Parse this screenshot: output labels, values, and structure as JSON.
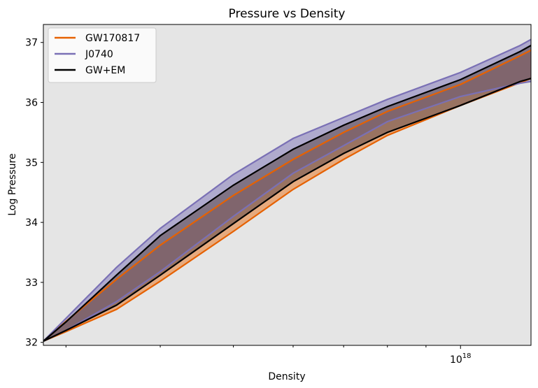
{
  "chart_data": {
    "type": "area",
    "title": "Pressure vs Density",
    "xlabel": "Density",
    "ylabel": "Log Pressure",
    "xscale": "log",
    "xlim": [
      2.8e+17,
      1.24e+18
    ],
    "ylim": [
      31.95,
      37.3
    ],
    "x_major_ticks": [
      1e+18
    ],
    "x_major_tick_labels": [
      "10^18"
    ],
    "x_minor_ticks": [
      3e+17,
      4e+17,
      5e+17,
      6e+17,
      7e+17,
      8e+17,
      9e+17
    ],
    "y_ticks": [
      32,
      33,
      34,
      35,
      36,
      37
    ],
    "y_tick_labels": [
      "32",
      "33",
      "34",
      "35",
      "36",
      "37"
    ],
    "background": "#e5e5e5",
    "legend": {
      "location": "top-left"
    },
    "series": [
      {
        "name": "GW170817",
        "color": "#e66101",
        "fill": "#e66101",
        "x": [
          2.8e+17,
          3e+17,
          3.5e+17,
          4e+17,
          5e+17,
          6e+17,
          7e+17,
          8e+17,
          1e+18,
          1.2e+18,
          1.24e+18
        ],
        "upper": [
          32.02,
          32.35,
          33.05,
          33.62,
          34.45,
          35.05,
          35.5,
          35.85,
          36.3,
          36.78,
          36.87
        ],
        "lower": [
          32.02,
          32.18,
          32.55,
          33.02,
          33.85,
          34.55,
          35.05,
          35.45,
          35.95,
          36.33,
          36.4
        ]
      },
      {
        "name": "J0740",
        "color": "#7a70b5",
        "fill": "#7a70b5",
        "x": [
          2.8e+17,
          3e+17,
          3.5e+17,
          4e+17,
          5e+17,
          6e+17,
          7e+17,
          8e+17,
          1e+18,
          1.2e+18,
          1.24e+18
        ],
        "upper": [
          32.02,
          32.4,
          33.25,
          33.9,
          34.8,
          35.4,
          35.75,
          36.05,
          36.5,
          36.95,
          37.05
        ],
        "lower": [
          32.02,
          32.2,
          32.68,
          33.18,
          34.1,
          34.82,
          35.28,
          35.68,
          36.1,
          36.32,
          36.35
        ]
      },
      {
        "name": "GW+EM",
        "color": "#000000",
        "fill": "#5a4548",
        "x": [
          2.8e+17,
          3e+17,
          3.5e+17,
          4e+17,
          5e+17,
          6e+17,
          7e+17,
          8e+17,
          1e+18,
          1.2e+18,
          1.24e+18
        ],
        "upper": [
          32.02,
          32.34,
          33.12,
          33.78,
          34.62,
          35.22,
          35.62,
          35.93,
          36.38,
          36.85,
          36.95
        ],
        "lower": [
          32.02,
          32.2,
          32.62,
          33.12,
          33.98,
          34.68,
          35.15,
          35.5,
          35.95,
          36.35,
          36.4
        ]
      }
    ]
  }
}
